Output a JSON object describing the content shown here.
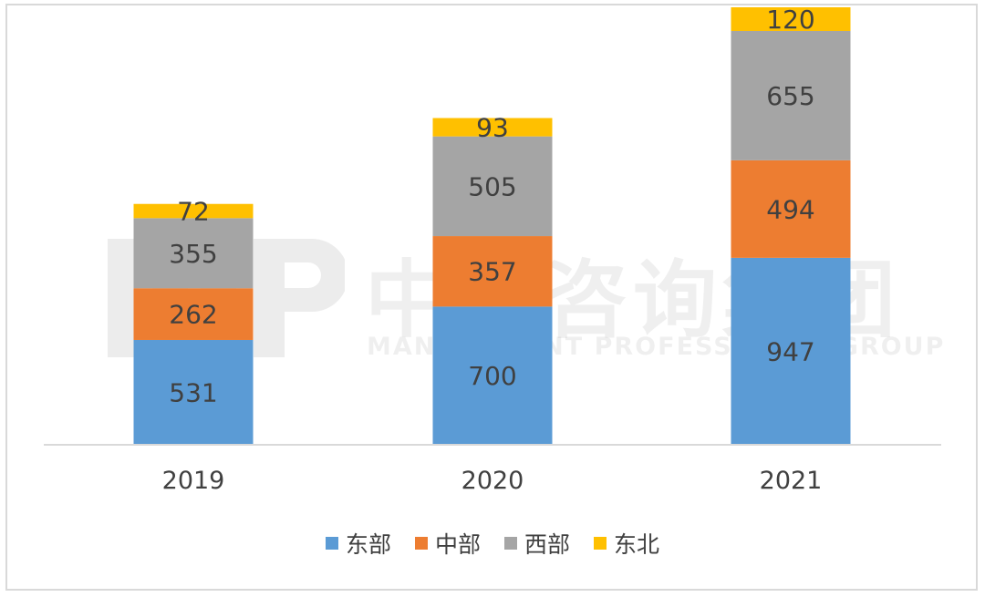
{
  "watermark": {
    "cn": "中大咨询集团",
    "en": "MANAGEMENT PROFESSIONAL GROUP"
  },
  "colors": {
    "east": "#5b9bd5",
    "central": "#ed7d31",
    "west": "#a5a5a5",
    "northeast": "#ffc000",
    "axis": "#d9d9d9",
    "text": "#404040"
  },
  "chart_data": {
    "type": "bar",
    "stacked": true,
    "categories": [
      "2019",
      "2020",
      "2021"
    ],
    "series": [
      {
        "name": "东部",
        "values": [
          531,
          700,
          947
        ]
      },
      {
        "name": "中部",
        "values": [
          262,
          357,
          494
        ]
      },
      {
        "name": "西部",
        "values": [
          355,
          505,
          655
        ]
      },
      {
        "name": "东北",
        "values": [
          72,
          93,
          120
        ]
      }
    ],
    "title": "",
    "xlabel": "",
    "ylabel": "",
    "ylim": [
      0,
      2216
    ],
    "grid": false,
    "legend_position": "bottom"
  }
}
